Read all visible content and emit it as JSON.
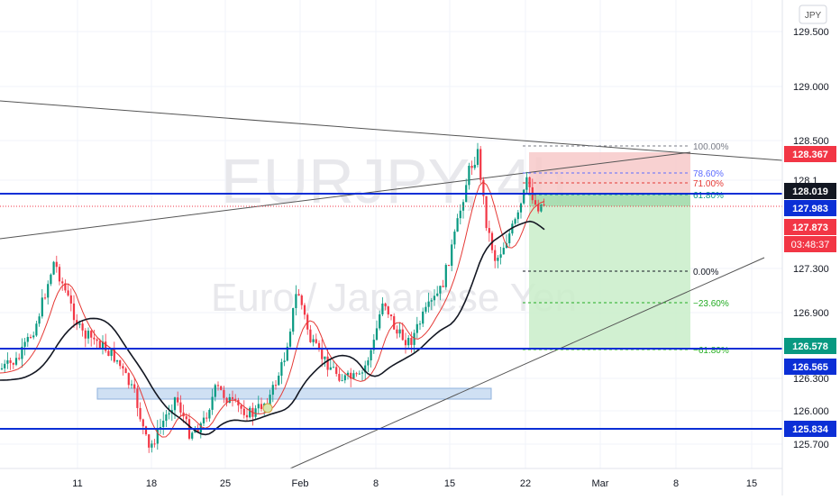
{
  "watermark": {
    "symbol": "EURJPY, 4h",
    "description": "Euro / Japanese Yen"
  },
  "currency_label": "JPY",
  "price_axis": {
    "ticks": [
      "129.500",
      "129.000",
      "128.500",
      "128.1",
      "127.300",
      "126.900",
      "126.300",
      "126.000",
      "125.700"
    ]
  },
  "price_badges": [
    {
      "label": "128.367",
      "color": "#f23645",
      "text_color": "#ffffff"
    },
    {
      "label": "128.019",
      "color": "#131722",
      "text_color": "#ffffff"
    },
    {
      "label": "127.983",
      "color": "#0b2fd6",
      "text_color": "#ffffff"
    },
    {
      "label": "127.873",
      "color": "#f23645",
      "text_color": "#ffffff"
    },
    {
      "label": "03:48:37",
      "color": "#f23645",
      "text_color": "#ffffff"
    },
    {
      "label": "126.578",
      "color": "#089981",
      "text_color": "#ffffff"
    },
    {
      "label": "126.565",
      "color": "#0b2fd6",
      "text_color": "#ffffff"
    },
    {
      "label": "125.834",
      "color": "#0b2fd6",
      "text_color": "#ffffff"
    }
  ],
  "time_axis": {
    "ticks": [
      "11",
      "18",
      "25",
      "Feb",
      "8",
      "15",
      "22",
      "Mar",
      "8",
      "15"
    ]
  },
  "fib_levels": [
    {
      "label": "100.00%",
      "color": "#787b86"
    },
    {
      "label": "78.60%",
      "color": "#5b6bff"
    },
    {
      "label": "71.00%",
      "color": "#e53935"
    },
    {
      "label": "61.80%",
      "color": "#089981"
    },
    {
      "label": "0.00%",
      "color": "#131722"
    },
    {
      "label": "−23.60%",
      "color": "#22ab22"
    },
    {
      "label": "−61.80%",
      "color": "#22ab22"
    }
  ],
  "colors": {
    "up": "#089981",
    "down": "#f23645",
    "horizontal_line": "#0b2fd6",
    "ma_fast": "#e53935",
    "ma_slow": "#131722",
    "stop_zone": "#f7c9c9",
    "target_zone": "#c9edc9",
    "demand_zone": "#cfe0f3"
  },
  "icons": {
    "circle_marker": "circle-marker-icon"
  }
}
